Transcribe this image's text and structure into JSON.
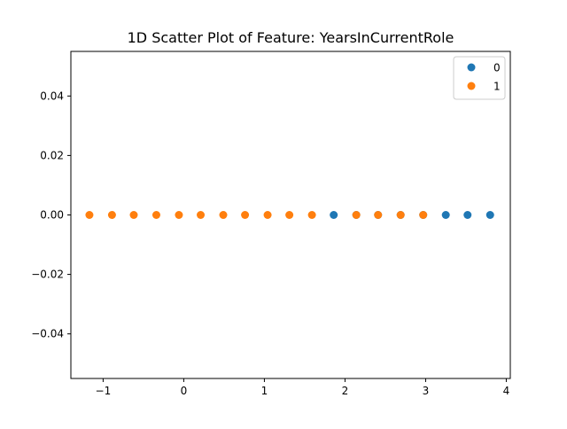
{
  "chart_data": {
    "type": "scatter",
    "title": "1D Scatter Plot of Feature: YearsInCurrentRole",
    "xlabel": "",
    "ylabel": "",
    "xlim": [
      -1.4,
      4.05
    ],
    "ylim": [
      -0.055,
      0.055
    ],
    "x_ticks": [
      -1,
      0,
      1,
      2,
      3,
      4
    ],
    "x_tick_labels": [
      "−1",
      "0",
      "1",
      "2",
      "3",
      "4"
    ],
    "y_ticks": [
      0.04,
      0.02,
      0.0,
      -0.02,
      -0.04
    ],
    "y_tick_labels": [
      "0.04",
      "0.02",
      "0.00",
      "−0.02",
      "−0.04"
    ],
    "grid": false,
    "legend_position": "top-right",
    "series": [
      {
        "name": "0",
        "color": "#1f77b4",
        "points": [
          {
            "x": 1.86,
            "y": 0
          },
          {
            "x": 2.14,
            "y": 0
          },
          {
            "x": 2.41,
            "y": 0
          },
          {
            "x": 2.69,
            "y": 0
          },
          {
            "x": 2.97,
            "y": 0
          },
          {
            "x": 3.25,
            "y": 0
          },
          {
            "x": 3.52,
            "y": 0
          },
          {
            "x": 3.8,
            "y": 0
          }
        ]
      },
      {
        "name": "1",
        "color": "#ff7f0e",
        "points": [
          {
            "x": -1.17,
            "y": 0
          },
          {
            "x": -0.89,
            "y": 0
          },
          {
            "x": -0.62,
            "y": 0
          },
          {
            "x": -0.34,
            "y": 0
          },
          {
            "x": -0.06,
            "y": 0
          },
          {
            "x": 0.21,
            "y": 0
          },
          {
            "x": 0.49,
            "y": 0
          },
          {
            "x": 0.76,
            "y": 0
          },
          {
            "x": 1.04,
            "y": 0
          },
          {
            "x": 1.31,
            "y": 0
          },
          {
            "x": 1.59,
            "y": 0
          },
          {
            "x": 2.14,
            "y": 0
          },
          {
            "x": 2.41,
            "y": 0
          },
          {
            "x": 2.69,
            "y": 0
          },
          {
            "x": 2.97,
            "y": 0
          }
        ]
      }
    ]
  }
}
